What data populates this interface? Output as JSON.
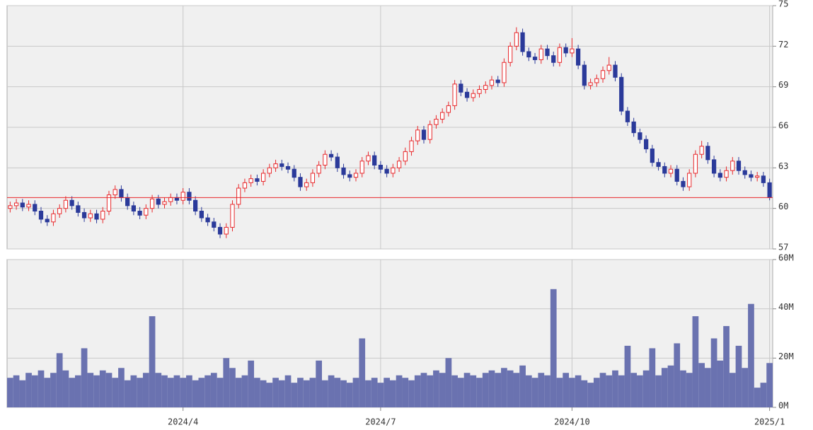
{
  "chart_data": [
    {
      "type": "candlestick",
      "ylim": [
        57,
        75
      ],
      "yticks": [
        57,
        60,
        63,
        66,
        69,
        72,
        75
      ],
      "grid": true,
      "up_color": "#e8282b",
      "down_color": "#2b3a9a",
      "reference_line": {
        "value": 60.8,
        "color": "#e8282b"
      },
      "open": [
        60.0,
        60.2,
        60.4,
        60.1,
        60.3,
        59.8,
        59.2,
        59.0,
        59.6,
        60.0,
        60.6,
        60.2,
        59.7,
        59.3,
        59.6,
        59.2,
        59.8,
        61.0,
        61.4,
        60.8,
        60.2,
        59.8,
        59.5,
        60.0,
        60.7,
        60.3,
        60.5,
        60.8,
        60.6,
        61.2,
        60.6,
        59.8,
        59.3,
        59.0,
        58.6,
        58.1,
        58.6,
        60.3,
        61.5,
        61.9,
        62.2,
        62.0,
        62.6,
        63.0,
        63.3,
        63.1,
        62.9,
        62.3,
        61.6,
        61.9,
        62.6,
        63.2,
        64.0,
        63.8,
        63.0,
        62.5,
        62.3,
        62.6,
        63.5,
        63.9,
        63.2,
        62.9,
        62.6,
        63.0,
        63.5,
        64.2,
        65.0,
        65.8,
        65.1,
        66.2,
        66.6,
        67.1,
        67.6,
        69.2,
        68.6,
        68.2,
        68.5,
        68.8,
        69.1,
        69.5,
        69.3,
        70.8,
        72.0,
        73.0,
        71.6,
        71.2,
        71.0,
        71.8,
        71.3,
        70.8,
        71.9,
        71.5,
        71.8,
        70.6,
        69.1,
        69.3,
        69.6,
        70.2,
        70.6,
        69.7,
        67.2,
        66.4,
        65.6,
        65.1,
        64.4,
        63.4,
        63.1,
        62.6,
        62.9,
        62.0,
        61.6,
        62.6,
        64.0,
        64.6,
        63.6,
        62.6,
        62.3,
        62.8,
        63.5,
        62.8,
        62.5,
        62.3,
        62.4,
        61.9
      ],
      "high": [
        60.5,
        60.7,
        60.7,
        60.6,
        60.6,
        60.1,
        59.5,
        59.9,
        60.3,
        60.9,
        60.9,
        60.5,
        60.0,
        59.9,
        59.9,
        60.1,
        61.3,
        61.7,
        61.7,
        61.1,
        60.5,
        60.1,
        60.3,
        61.0,
        61.0,
        60.8,
        61.1,
        61.1,
        61.5,
        61.5,
        60.9,
        60.1,
        59.6,
        59.3,
        58.9,
        58.9,
        60.6,
        61.8,
        62.2,
        62.5,
        62.5,
        62.9,
        63.3,
        63.6,
        63.6,
        63.4,
        63.2,
        62.6,
        62.2,
        62.9,
        63.5,
        64.3,
        64.3,
        64.1,
        63.3,
        62.8,
        62.9,
        63.8,
        64.2,
        64.2,
        63.5,
        63.2,
        63.3,
        63.8,
        64.5,
        65.3,
        66.1,
        66.1,
        66.5,
        66.9,
        67.4,
        67.9,
        69.5,
        69.5,
        68.9,
        68.8,
        69.1,
        69.4,
        69.8,
        69.8,
        71.1,
        72.3,
        73.4,
        73.3,
        71.9,
        71.5,
        72.1,
        72.1,
        71.6,
        72.2,
        72.2,
        72.6,
        72.1,
        70.9,
        69.6,
        69.9,
        70.5,
        71.2,
        70.9,
        70.0,
        67.5,
        66.7,
        65.9,
        65.4,
        64.7,
        63.7,
        63.4,
        63.2,
        63.2,
        62.3,
        62.9,
        64.3,
        65.0,
        64.9,
        63.9,
        62.9,
        63.1,
        63.8,
        63.8,
        63.1,
        62.8,
        62.7,
        62.7,
        62.2
      ],
      "low": [
        59.7,
        59.9,
        59.8,
        59.8,
        59.5,
        58.9,
        58.7,
        58.7,
        59.3,
        59.7,
        59.9,
        59.4,
        59.0,
        59.0,
        58.9,
        58.9,
        59.5,
        60.7,
        60.5,
        59.9,
        59.5,
        59.2,
        59.2,
        59.7,
        60.0,
        60.0,
        60.2,
        60.3,
        60.3,
        60.3,
        59.5,
        59.0,
        58.7,
        58.3,
        57.8,
        57.8,
        58.3,
        60.0,
        61.2,
        61.6,
        61.7,
        61.7,
        62.3,
        62.7,
        62.8,
        62.6,
        62.0,
        61.3,
        61.3,
        61.6,
        62.3,
        62.9,
        63.5,
        62.7,
        62.2,
        62.0,
        62.0,
        62.3,
        63.2,
        62.9,
        62.6,
        62.3,
        62.3,
        62.7,
        63.2,
        63.9,
        64.7,
        64.8,
        64.8,
        65.9,
        66.3,
        66.8,
        67.3,
        68.3,
        67.9,
        67.9,
        68.2,
        68.5,
        68.8,
        69.0,
        69.0,
        70.5,
        71.7,
        71.3,
        70.9,
        70.7,
        70.7,
        71.0,
        70.5,
        70.5,
        71.2,
        71.2,
        70.3,
        68.8,
        68.8,
        69.0,
        69.3,
        69.9,
        69.4,
        66.9,
        66.1,
        65.3,
        64.8,
        64.1,
        63.1,
        62.8,
        62.3,
        62.3,
        61.7,
        61.3,
        61.3,
        62.3,
        63.7,
        63.3,
        62.3,
        62.0,
        62.0,
        62.5,
        62.5,
        62.2,
        62.0,
        62.0,
        61.6,
        60.6
      ],
      "close": [
        60.2,
        60.4,
        60.1,
        60.3,
        59.8,
        59.2,
        59.0,
        59.6,
        60.0,
        60.6,
        60.2,
        59.7,
        59.3,
        59.6,
        59.2,
        59.8,
        61.0,
        61.4,
        60.8,
        60.2,
        59.8,
        59.5,
        60.0,
        60.7,
        60.3,
        60.5,
        60.8,
        60.6,
        61.2,
        60.6,
        59.8,
        59.3,
        59.0,
        58.6,
        58.1,
        58.6,
        60.3,
        61.5,
        61.9,
        62.2,
        62.0,
        62.6,
        63.0,
        63.3,
        63.1,
        62.9,
        62.3,
        61.6,
        61.9,
        62.6,
        63.2,
        64.0,
        63.8,
        63.0,
        62.5,
        62.3,
        62.6,
        63.5,
        63.9,
        63.2,
        62.9,
        62.6,
        63.0,
        63.5,
        64.2,
        65.0,
        65.8,
        65.1,
        66.2,
        66.6,
        67.1,
        67.6,
        69.2,
        68.6,
        68.2,
        68.5,
        68.8,
        69.1,
        69.5,
        69.3,
        70.8,
        72.0,
        73.0,
        71.6,
        71.2,
        71.0,
        71.8,
        71.3,
        70.8,
        71.9,
        71.5,
        71.8,
        70.6,
        69.1,
        69.3,
        69.6,
        70.2,
        70.6,
        69.7,
        67.2,
        66.4,
        65.6,
        65.1,
        64.4,
        63.4,
        63.1,
        62.6,
        62.9,
        62.0,
        61.6,
        62.6,
        64.0,
        64.6,
        63.6,
        62.6,
        62.3,
        62.8,
        63.5,
        62.8,
        62.5,
        62.3,
        62.4,
        61.9,
        60.8
      ]
    },
    {
      "type": "bar",
      "color": "#6a72b0",
      "grid": true,
      "ylim": [
        0,
        60
      ],
      "yticks": [
        {
          "value": 0,
          "label": "0M"
        },
        {
          "value": 20,
          "label": "20M"
        },
        {
          "value": 40,
          "label": "40M"
        },
        {
          "value": 60,
          "label": "60M"
        }
      ],
      "categories": [
        null,
        null,
        null,
        null,
        null,
        null,
        null,
        null,
        null,
        null,
        null,
        null,
        null,
        null,
        null,
        null,
        null,
        null,
        null,
        null,
        null,
        null,
        null,
        null,
        null,
        null,
        null,
        null,
        "2024/4",
        null,
        null,
        null,
        null,
        null,
        null,
        null,
        null,
        null,
        null,
        null,
        null,
        null,
        null,
        null,
        null,
        null,
        null,
        null,
        null,
        null,
        null,
        null,
        null,
        null,
        null,
        null,
        null,
        null,
        null,
        null,
        "2024/7",
        null,
        null,
        null,
        null,
        null,
        null,
        null,
        null,
        null,
        null,
        null,
        null,
        null,
        null,
        null,
        null,
        null,
        null,
        null,
        null,
        null,
        null,
        null,
        null,
        null,
        null,
        null,
        null,
        null,
        null,
        "2024/10",
        null,
        null,
        null,
        null,
        null,
        null,
        null,
        null,
        null,
        null,
        null,
        null,
        null,
        null,
        null,
        null,
        null,
        null,
        null,
        null,
        null,
        null,
        null,
        null,
        null,
        null,
        null,
        null,
        null,
        null,
        null,
        "2025/1"
      ],
      "values": [
        12,
        13,
        11,
        14,
        13,
        15,
        12,
        14,
        22,
        15,
        12,
        13,
        24,
        14,
        13,
        15,
        14,
        12,
        16,
        11,
        13,
        12,
        14,
        37,
        14,
        13,
        12,
        13,
        12,
        13,
        11,
        12,
        13,
        14,
        12,
        20,
        16,
        12,
        13,
        19,
        12,
        11,
        10,
        12,
        11,
        13,
        10,
        12,
        11,
        12,
        19,
        11,
        13,
        12,
        11,
        10,
        12,
        28,
        11,
        12,
        10,
        12,
        11,
        13,
        12,
        11,
        13,
        14,
        13,
        15,
        14,
        20,
        13,
        12,
        14,
        13,
        12,
        14,
        15,
        14,
        16,
        15,
        14,
        17,
        13,
        12,
        14,
        13,
        48,
        12,
        14,
        12,
        13,
        11,
        10,
        12,
        14,
        13,
        15,
        13,
        25,
        14,
        13,
        15,
        24,
        13,
        16,
        17,
        26,
        15,
        14,
        37,
        18,
        16,
        28,
        19,
        33,
        14,
        25,
        16,
        42,
        8,
        10,
        18
      ]
    }
  ]
}
